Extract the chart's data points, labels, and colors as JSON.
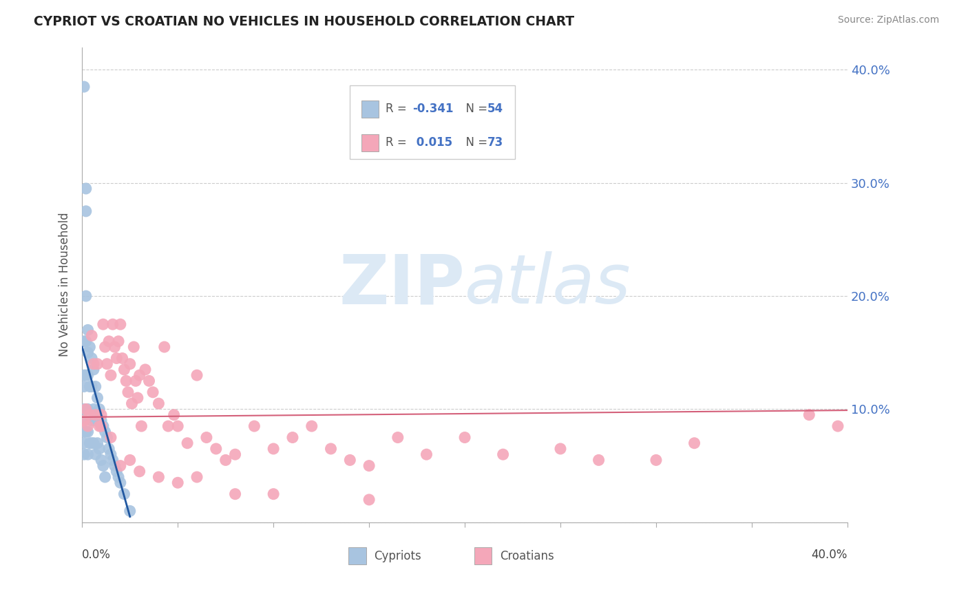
{
  "title": "CYPRIOT VS CROATIAN NO VEHICLES IN HOUSEHOLD CORRELATION CHART",
  "source": "Source: ZipAtlas.com",
  "ylabel": "No Vehicles in Household",
  "xmin": 0.0,
  "xmax": 0.4,
  "ymin": 0.0,
  "ymax": 0.42,
  "cypriot_color": "#a8c4e0",
  "croatian_color": "#f4a7b9",
  "cypriot_line_color": "#2057a0",
  "croatian_line_color": "#d4607a",
  "watermark_color": "#dce9f5",
  "background_color": "#ffffff",
  "grid_color": "#cccccc",
  "right_axis_color": "#4472c4",
  "cypriot_x": [
    0.001,
    0.001,
    0.001,
    0.001,
    0.001,
    0.001,
    0.001,
    0.001,
    0.001,
    0.002,
    0.002,
    0.002,
    0.002,
    0.002,
    0.002,
    0.003,
    0.003,
    0.003,
    0.003,
    0.003,
    0.003,
    0.004,
    0.004,
    0.004,
    0.005,
    0.005,
    0.005,
    0.005,
    0.006,
    0.006,
    0.006,
    0.007,
    0.007,
    0.007,
    0.008,
    0.008,
    0.009,
    0.009,
    0.01,
    0.01,
    0.011,
    0.011,
    0.012,
    0.012,
    0.013,
    0.014,
    0.015,
    0.016,
    0.017,
    0.018,
    0.019,
    0.02,
    0.022,
    0.025
  ],
  "cypriot_y": [
    0.385,
    0.16,
    0.13,
    0.12,
    0.1,
    0.09,
    0.08,
    0.07,
    0.06,
    0.295,
    0.275,
    0.2,
    0.16,
    0.13,
    0.08,
    0.17,
    0.15,
    0.13,
    0.1,
    0.08,
    0.06,
    0.155,
    0.12,
    0.07,
    0.145,
    0.12,
    0.09,
    0.07,
    0.135,
    0.1,
    0.07,
    0.12,
    0.09,
    0.06,
    0.11,
    0.07,
    0.1,
    0.065,
    0.09,
    0.055,
    0.085,
    0.05,
    0.08,
    0.04,
    0.075,
    0.065,
    0.06,
    0.055,
    0.05,
    0.045,
    0.04,
    0.035,
    0.025,
    0.01
  ],
  "croatian_x": [
    0.001,
    0.002,
    0.003,
    0.004,
    0.005,
    0.006,
    0.007,
    0.008,
    0.009,
    0.01,
    0.011,
    0.012,
    0.013,
    0.014,
    0.015,
    0.016,
    0.017,
    0.018,
    0.019,
    0.02,
    0.021,
    0.022,
    0.023,
    0.024,
    0.025,
    0.026,
    0.027,
    0.028,
    0.029,
    0.03,
    0.031,
    0.033,
    0.035,
    0.037,
    0.04,
    0.043,
    0.045,
    0.048,
    0.05,
    0.055,
    0.06,
    0.065,
    0.07,
    0.075,
    0.08,
    0.09,
    0.1,
    0.11,
    0.12,
    0.13,
    0.14,
    0.15,
    0.165,
    0.18,
    0.2,
    0.22,
    0.25,
    0.27,
    0.3,
    0.32,
    0.01,
    0.015,
    0.02,
    0.025,
    0.03,
    0.04,
    0.05,
    0.06,
    0.08,
    0.1,
    0.15,
    0.38,
    0.395
  ],
  "croatian_y": [
    0.09,
    0.1,
    0.085,
    0.095,
    0.165,
    0.14,
    0.095,
    0.14,
    0.085,
    0.095,
    0.175,
    0.155,
    0.14,
    0.16,
    0.13,
    0.175,
    0.155,
    0.145,
    0.16,
    0.175,
    0.145,
    0.135,
    0.125,
    0.115,
    0.14,
    0.105,
    0.155,
    0.125,
    0.11,
    0.13,
    0.085,
    0.135,
    0.125,
    0.115,
    0.105,
    0.155,
    0.085,
    0.095,
    0.085,
    0.07,
    0.13,
    0.075,
    0.065,
    0.055,
    0.06,
    0.085,
    0.065,
    0.075,
    0.085,
    0.065,
    0.055,
    0.05,
    0.075,
    0.06,
    0.075,
    0.06,
    0.065,
    0.055,
    0.055,
    0.07,
    0.085,
    0.075,
    0.05,
    0.055,
    0.045,
    0.04,
    0.035,
    0.04,
    0.025,
    0.025,
    0.02,
    0.095,
    0.085
  ]
}
